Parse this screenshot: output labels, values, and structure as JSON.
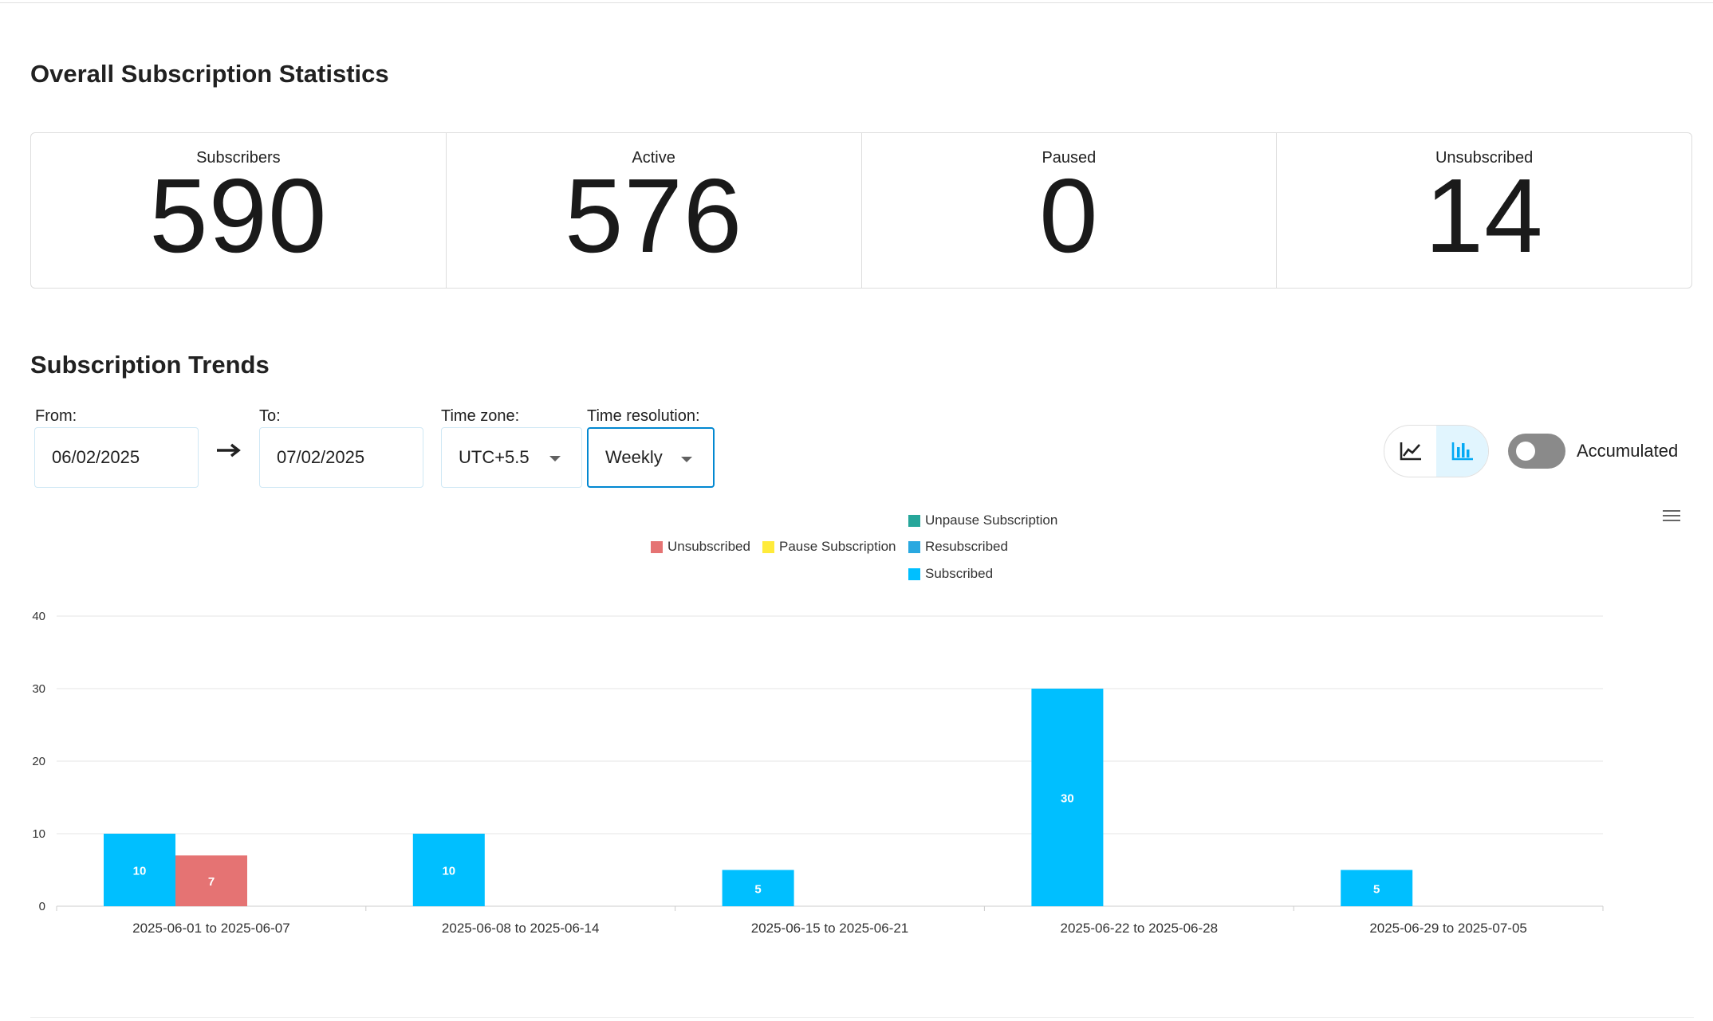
{
  "stats": {
    "title": "Overall Subscription Statistics",
    "cards": [
      {
        "label": "Subscribers",
        "value": "590"
      },
      {
        "label": "Active",
        "value": "576"
      },
      {
        "label": "Paused",
        "value": "0"
      },
      {
        "label": "Unsubscribed",
        "value": "14"
      }
    ]
  },
  "trends": {
    "title": "Subscription Trends",
    "from_label": "From:",
    "from_value": "06/02/2025",
    "to_label": "To:",
    "to_value": "07/02/2025",
    "timezone_label": "Time zone:",
    "timezone_value": "UTC+5.5",
    "resolution_label": "Time resolution:",
    "resolution_value": "Weekly",
    "chart_type_selected": "bar",
    "accumulated_label": "Accumulated",
    "accumulated_on": false
  },
  "icons": {
    "range_arrow": "arrow-right-icon",
    "line_chart": "line-chart-icon",
    "bar_chart": "bar-chart-icon",
    "menu": "hamburger-menu-icon"
  },
  "chart_data": {
    "type": "bar",
    "categories": [
      "2025-06-01 to 2025-06-07",
      "2025-06-08 to 2025-06-14",
      "2025-06-15 to 2025-06-21",
      "2025-06-22 to 2025-06-28",
      "2025-06-29 to 2025-07-05"
    ],
    "ylim": [
      0,
      40
    ],
    "yticks": [
      0,
      10,
      20,
      30,
      40
    ],
    "grid": true,
    "legend_position": "top-center",
    "series": [
      {
        "name": "Subscribed",
        "color": "#00bfff",
        "values": [
          10,
          10,
          5,
          30,
          5
        ],
        "data_labels": [
          "10",
          "10",
          "5",
          "30",
          "5"
        ]
      },
      {
        "name": "Unsubscribed",
        "color": "#e57373",
        "values": [
          7,
          0,
          0,
          0,
          0
        ],
        "data_labels": [
          "7",
          "",
          "",
          "",
          ""
        ]
      },
      {
        "name": "Pause Subscription",
        "color": "#ffeb3b",
        "values": [
          0,
          0,
          0,
          0,
          0
        ]
      },
      {
        "name": "Resubscribed",
        "color": "#29a8e0",
        "values": [
          0,
          0,
          0,
          0,
          0
        ]
      },
      {
        "name": "Unpause Subscription",
        "color": "#26a69a",
        "values": [
          0,
          0,
          0,
          0,
          0
        ]
      }
    ]
  }
}
